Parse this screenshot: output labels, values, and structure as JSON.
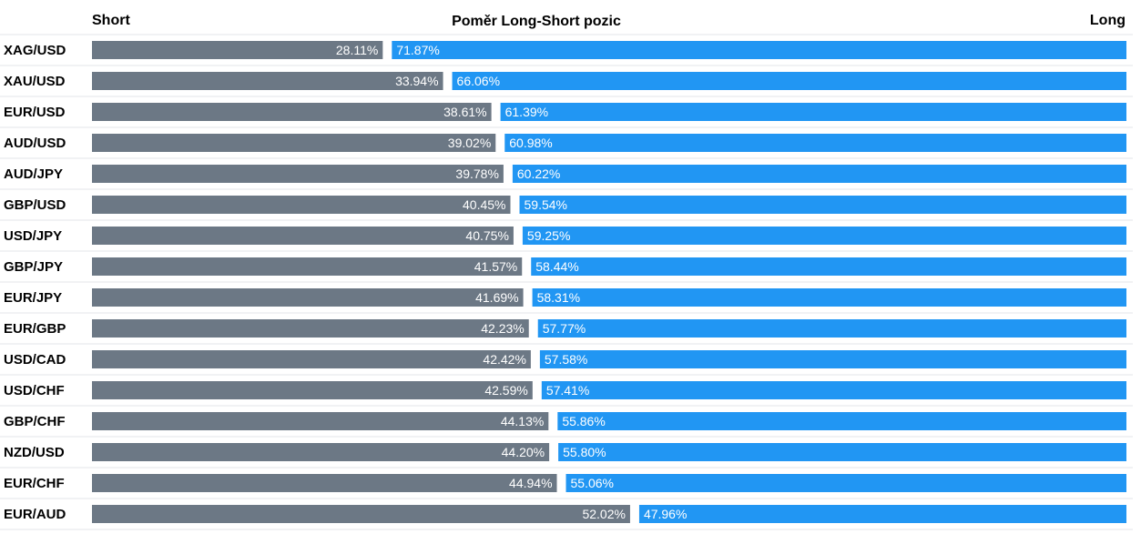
{
  "chart_data": {
    "type": "bar",
    "title": "Poměr Long-Short pozic",
    "short_label": "Short",
    "long_label": "Long",
    "unit": "%",
    "colors": {
      "short": "#6c7885",
      "long": "#2196f3",
      "text": "#000000",
      "label": "#ffffff",
      "grid": "#e3e6ea"
    },
    "categories": [
      "XAG/USD",
      "XAU/USD",
      "EUR/USD",
      "AUD/USD",
      "AUD/JPY",
      "GBP/USD",
      "USD/JPY",
      "GBP/JPY",
      "EUR/JPY",
      "EUR/GBP",
      "USD/CAD",
      "USD/CHF",
      "GBP/CHF",
      "NZD/USD",
      "EUR/CHF",
      "EUR/AUD"
    ],
    "series": [
      {
        "name": "Short",
        "values": [
          28.11,
          33.94,
          38.61,
          39.02,
          39.78,
          40.45,
          40.75,
          41.57,
          41.69,
          42.23,
          42.42,
          42.59,
          44.13,
          44.2,
          44.94,
          52.02
        ]
      },
      {
        "name": "Long",
        "values": [
          71.87,
          66.06,
          61.39,
          60.98,
          60.22,
          59.54,
          59.25,
          58.44,
          58.31,
          57.77,
          57.58,
          57.41,
          55.86,
          55.8,
          55.06,
          47.96
        ]
      }
    ],
    "value_labels": {
      "short": [
        "28.11%",
        "33.94%",
        "38.61%",
        "39.02%",
        "39.78%",
        "40.45%",
        "40.75%",
        "41.57%",
        "41.69%",
        "42.23%",
        "42.42%",
        "42.59%",
        "44.13%",
        "44.20%",
        "44.94%",
        "52.02%"
      ],
      "long": [
        "71.87%",
        "66.06%",
        "61.39%",
        "60.98%",
        "60.22%",
        "59.54%",
        "59.25%",
        "58.44%",
        "58.31%",
        "57.77%",
        "57.58%",
        "57.41%",
        "55.86%",
        "55.80%",
        "55.06%",
        "47.96%"
      ]
    },
    "stacked": true,
    "orientation": "horizontal",
    "xlim": [
      0,
      100
    ],
    "legend": "none"
  }
}
